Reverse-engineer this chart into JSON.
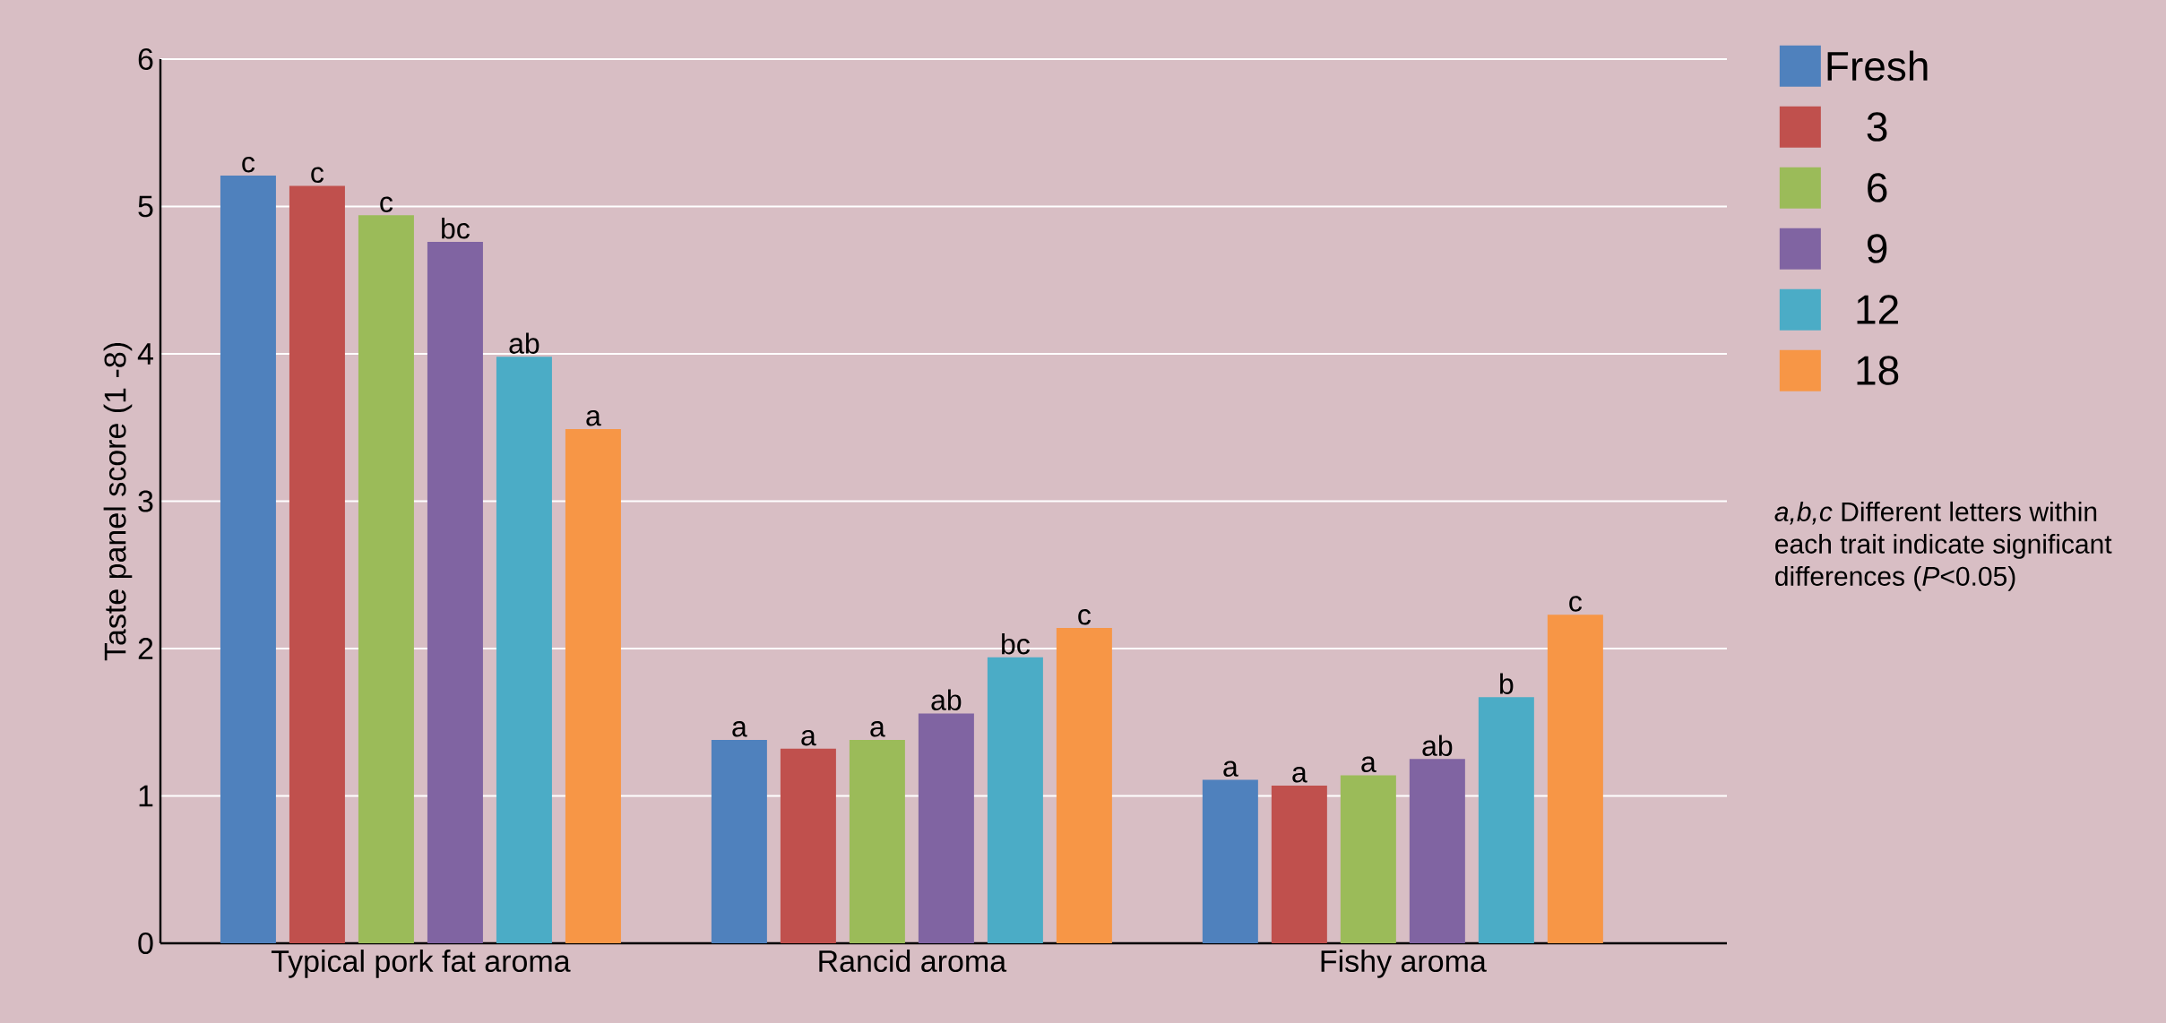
{
  "chart_data": {
    "type": "bar",
    "ylabel": "Taste panel score (1 -8)",
    "categories": [
      "Typical pork fat aroma",
      "Rancid aroma",
      "Fishy aroma"
    ],
    "series": [
      {
        "name": "Fresh",
        "color": "#4f81bd",
        "values": [
          5.21,
          1.38,
          1.11
        ],
        "value_labels": [
          "c",
          "a",
          "a"
        ]
      },
      {
        "name": "3",
        "color": "#c0504d",
        "values": [
          5.14,
          1.32,
          1.07
        ],
        "value_labels": [
          "c",
          "a",
          "a"
        ]
      },
      {
        "name": "6",
        "color": "#9bbb59",
        "values": [
          4.94,
          1.38,
          1.14
        ],
        "value_labels": [
          "c",
          "a",
          "a"
        ]
      },
      {
        "name": "9",
        "color": "#8064a2",
        "values": [
          4.76,
          1.56,
          1.25
        ],
        "value_labels": [
          "bc",
          "ab",
          "ab"
        ]
      },
      {
        "name": "12",
        "color": "#4bacc6",
        "values": [
          3.98,
          1.94,
          1.67
        ],
        "value_labels": [
          "ab",
          "bc",
          "b"
        ]
      },
      {
        "name": "18",
        "color": "#f79646",
        "values": [
          3.49,
          2.14,
          2.23
        ],
        "value_labels": [
          "a",
          "c",
          "c"
        ]
      }
    ],
    "ylim": [
      0,
      6
    ],
    "yticks": [
      0,
      1,
      2,
      3,
      4,
      5,
      6
    ],
    "grid": "y",
    "legend": "top right",
    "annotations": [
      "*a,b,c* Different letters within each trait indicate significant differences (*P*<0.05)"
    ]
  }
}
